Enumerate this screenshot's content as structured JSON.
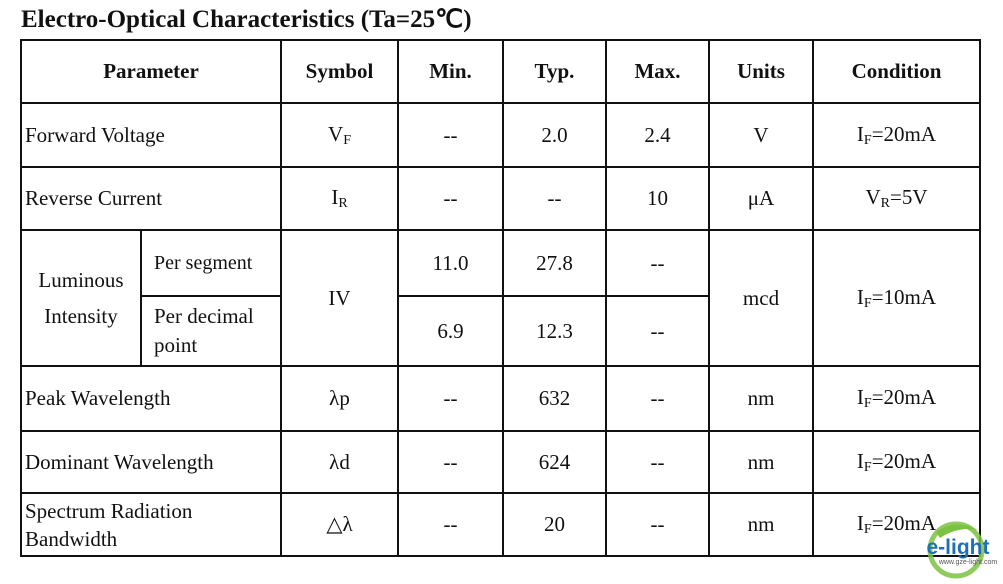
{
  "title": "Electro-Optical Characteristics (Ta=25℃)",
  "headers": {
    "parameter": "Parameter",
    "symbol": "Symbol",
    "min": "Min.",
    "typ": "Typ.",
    "max": "Max.",
    "units": "Units",
    "condition": "Condition"
  },
  "rows": [
    {
      "parameter": "Forward Voltage",
      "symbol": "V",
      "symbol_sub": "F",
      "min": "--",
      "typ": "2.0",
      "max": "2.4",
      "units": "V",
      "condition": "I",
      "condition_sub": "F",
      "condition_rest": "=20mA"
    },
    {
      "parameter": "Reverse Current",
      "symbol": "I",
      "symbol_sub": "R",
      "min": "--",
      "typ": "--",
      "max": "10",
      "units": "μA",
      "condition": "V",
      "condition_sub": "R",
      "condition_rest": "=5V"
    },
    {
      "parameter": "Luminous Intensity",
      "symbol": "IV",
      "units": "mcd",
      "condition": "I",
      "condition_sub": "F",
      "condition_rest": "=10mA",
      "sub": [
        {
          "label": "Per segment",
          "min": "11.0",
          "typ": "27.8",
          "max": "--"
        },
        {
          "label": "Per decimal point",
          "min": "6.9",
          "typ": "12.3",
          "max": "--"
        }
      ]
    },
    {
      "parameter": "Peak Wavelength",
      "symbol": "λp",
      "min": "--",
      "typ": "632",
      "max": "--",
      "units": "nm",
      "condition": "I",
      "condition_sub": "F",
      "condition_rest": "=20mA"
    },
    {
      "parameter": "Dominant Wavelength",
      "symbol": "λd",
      "min": "--",
      "typ": "624",
      "max": "--",
      "units": "nm",
      "condition": "I",
      "condition_sub": "F",
      "condition_rest": "=20mA"
    },
    {
      "parameter": "Spectrum Radiation Bandwidth",
      "symbol": "△λ",
      "min": "--",
      "typ": "20",
      "max": "--",
      "units": "nm",
      "condition": "I",
      "condition_sub": "F",
      "condition_rest": "=20mA"
    }
  ],
  "logo": {
    "text": "e-light",
    "url_text": "www.gze-light.com",
    "colors": {
      "green": "#7cc242",
      "blue": "#1f6fb5"
    }
  }
}
